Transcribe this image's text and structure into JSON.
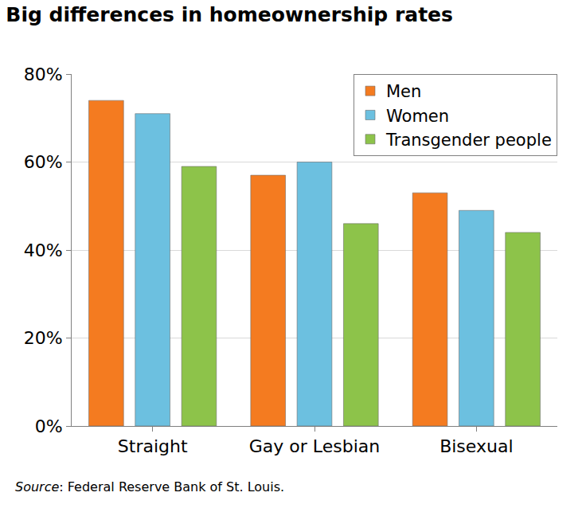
{
  "chart_data": {
    "type": "bar",
    "title": "Big differences in homeownership rates",
    "source": "Source: Federal Reserve Bank of St. Louis.",
    "categories": [
      "Straight",
      "Gay or Lesbian",
      "Bisexual"
    ],
    "series": [
      {
        "name": "Men",
        "color": "#f47b20",
        "values": [
          74,
          57,
          53
        ]
      },
      {
        "name": "Women",
        "color": "#6cc0e0",
        "values": [
          71,
          60,
          49
        ]
      },
      {
        "name": "Transgender people",
        "color": "#8dc34a",
        "values": [
          59,
          46,
          44
        ]
      }
    ],
    "ylim": [
      0,
      80
    ],
    "yticks": [
      {
        "value": 0,
        "label": "0%"
      },
      {
        "value": 20,
        "label": "20%"
      },
      {
        "value": 40,
        "label": "40%"
      },
      {
        "value": 60,
        "label": "60%"
      },
      {
        "value": 80,
        "label": "80%"
      }
    ],
    "grid": true,
    "legend": "top right"
  }
}
